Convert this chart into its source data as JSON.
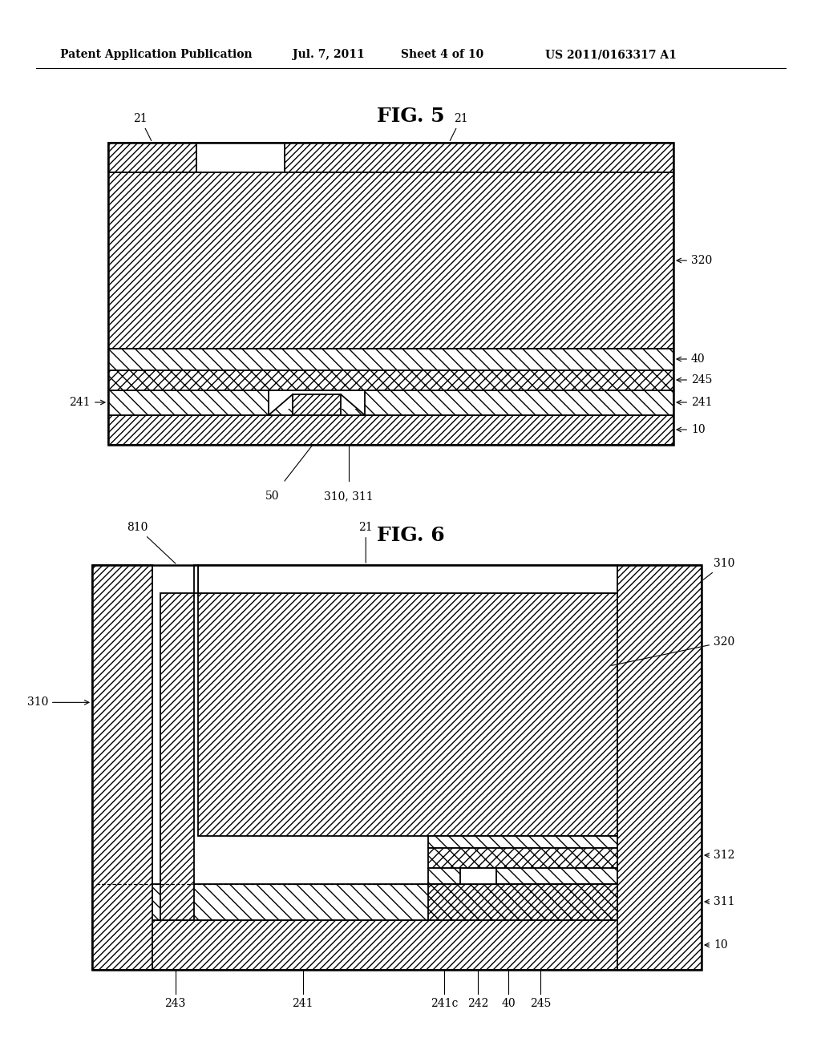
{
  "bg_color": "#ffffff",
  "header_text": "Patent Application Publication",
  "header_date": "Jul. 7, 2011",
  "header_sheet": "Sheet 4 of 10",
  "header_patent": "US 2011/0163317 A1",
  "fig5_title": "FIG. 5",
  "fig6_title": "FIG. 6"
}
